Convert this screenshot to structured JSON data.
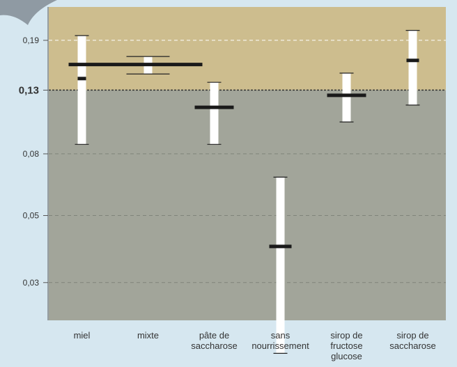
{
  "colors": {
    "page_background": "#d6e7f0",
    "upper_band": "#cdbd8e",
    "lower_band": "#a2a59a",
    "whisker_box": "#ffffff",
    "median_bar": "#1a1a1a",
    "corner_shape": "#8f9aa3"
  },
  "icon": "leaf-shape-icon",
  "chart_data": {
    "type": "boxplot",
    "y_ticks": [
      {
        "label": "0,03",
        "value": 0.03
      },
      {
        "label": "0,05",
        "value": 0.05
      },
      {
        "label": "0,08",
        "value": 0.08
      },
      {
        "label": "0,13",
        "value": 0.13,
        "emphasis": true
      },
      {
        "label": "0,19",
        "value": 0.19
      }
    ],
    "y_scale": "log",
    "ylim": [
      0.0225,
      0.245
    ],
    "threshold": 0.13,
    "grid": "dashed horizontal",
    "categories": [
      [
        "miel"
      ],
      [
        "mixte"
      ],
      [
        "pâte de",
        "saccharose"
      ],
      [
        "sans",
        "nourrissement"
      ],
      [
        "sirop de",
        "fructose",
        "glucose"
      ],
      [
        "sirop de",
        "saccharose"
      ]
    ],
    "series": [
      {
        "low": 0.086,
        "high": 0.197,
        "median": 0.142
      },
      {
        "low": 0.147,
        "high": 0.168,
        "median": 0.158
      },
      {
        "low": 0.086,
        "high": 0.138,
        "median": 0.114
      },
      {
        "low": 0.0175,
        "high": 0.067,
        "median": 0.0395
      },
      {
        "low": 0.102,
        "high": 0.148,
        "median": 0.125
      },
      {
        "low": 0.116,
        "high": 0.205,
        "median": 0.163
      }
    ]
  }
}
